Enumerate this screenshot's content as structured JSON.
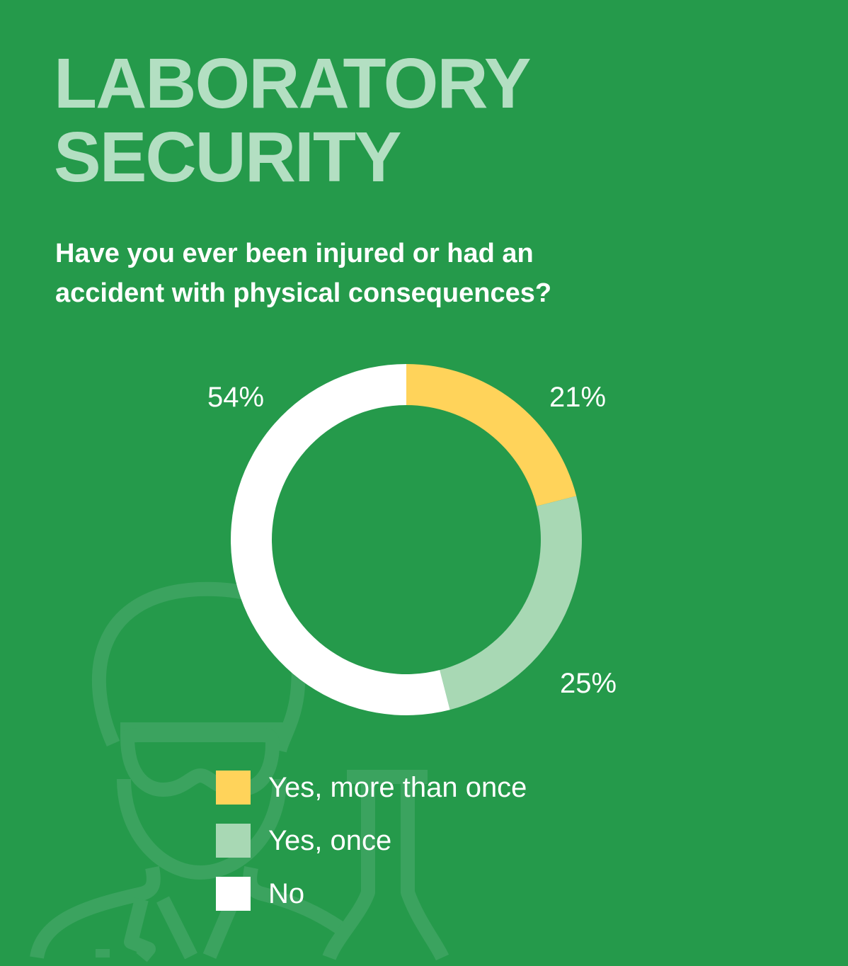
{
  "title_lines": [
    "LABORATORY",
    "SECURITY"
  ],
  "subtitle_lines": [
    "Have you ever been injured or had an",
    "accident with physical consequences?"
  ],
  "background_icon": "scientist-with-flask-outline",
  "colors": {
    "background": "#259a4b",
    "title": "#b3dfc2",
    "icon": "#3ba35f"
  },
  "chart_data": {
    "type": "pie",
    "variant": "donut",
    "title": "",
    "start": "top, clockwise",
    "slices": [
      {
        "label": "Yes, more than once",
        "value": 21,
        "display": "21%",
        "color": "#ffd35a"
      },
      {
        "label": "Yes, once",
        "value": 25,
        "display": "25%",
        "color": "#a8d8b4"
      },
      {
        "label": "No",
        "value": 54,
        "display": "54%",
        "color": "#ffffff"
      }
    ],
    "legend_placement": "bottom"
  }
}
